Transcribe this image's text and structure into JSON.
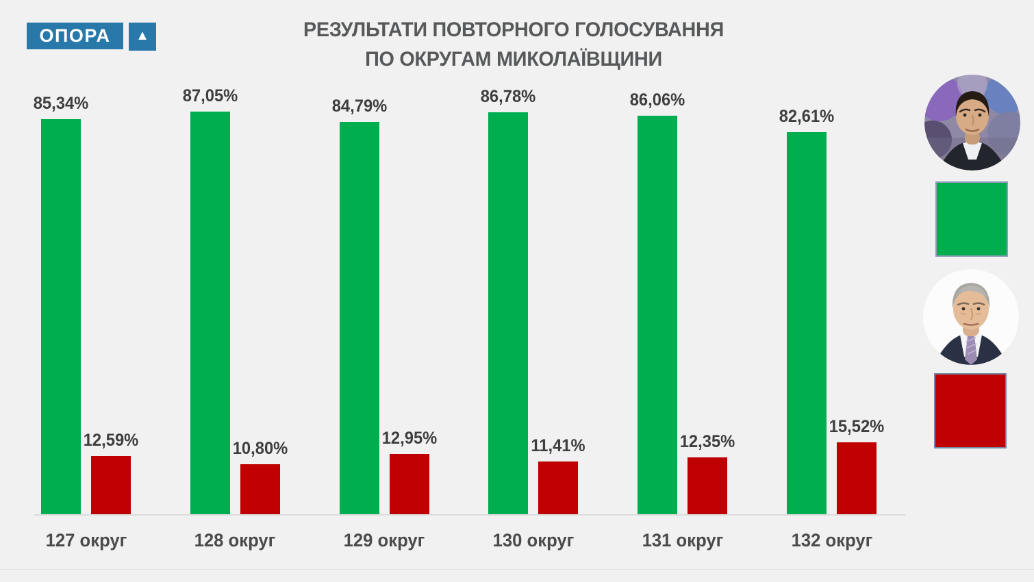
{
  "logo": {
    "text": "ОПОРА",
    "triangle_glyph": "▲",
    "color": "#2878A9"
  },
  "title": {
    "line1": "РЕЗУЛЬТАТИ ПОВТОРНОГО ГОЛОСУВАННЯ",
    "line2": "ПО ОКРУГАМ МИКОЛАЇВЩИНИ"
  },
  "chart_data": {
    "type": "bar",
    "title": "РЕЗУЛЬТАТИ ПОВТОРНОГО ГОЛОСУВАННЯ ПО ОКРУГАМ МИКОЛАЇВЩИНИ",
    "categories": [
      "127 округ",
      "128 округ",
      "129 округ",
      "130 округ",
      "131 округ",
      "132 округ"
    ],
    "series": [
      {
        "id": "green",
        "name": "green-candidate",
        "color": "#00AE4F",
        "values": [
          85.34,
          87.05,
          84.79,
          86.78,
          86.06,
          82.61
        ],
        "display": [
          "85,34%",
          "87,05%",
          "84,79%",
          "86,78%",
          "86,06%",
          "82,61%"
        ]
      },
      {
        "id": "red",
        "name": "red-candidate",
        "color": "#C00000",
        "values": [
          12.59,
          10.8,
          12.95,
          11.41,
          12.35,
          15.52
        ],
        "display": [
          "12,59%",
          "10,80%",
          "12,95%",
          "11,41%",
          "12,35%",
          "15,52%"
        ]
      }
    ],
    "xlabel": "",
    "ylabel": "",
    "ylim": [
      0,
      100
    ],
    "grid": false,
    "value_labels": "above-bars, comma decimal separator, percent",
    "legend_position": "right, candidate portraits with color swatches"
  },
  "legend": {
    "items": [
      {
        "id": "green",
        "portrait_icon": "man-dark-hair-portrait",
        "swatch_color": "#00AE4F"
      },
      {
        "id": "red",
        "portrait_icon": "man-gray-hair-portrait",
        "swatch_color": "#C00000"
      }
    ]
  }
}
